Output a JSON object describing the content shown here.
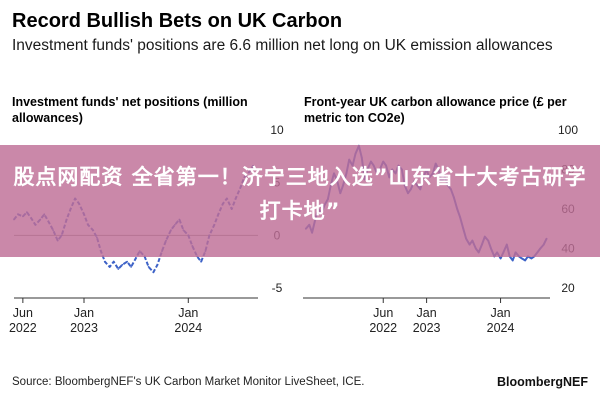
{
  "header": {
    "title": "Record Bullish Bets on UK Carbon",
    "subtitle": "Investment funds' positions are 6.6 million net long on UK emission allowances"
  },
  "overlay_text": "股点网配资 全省第一！济宁三地入选”山东省十大考古研学打卡地”",
  "footer": {
    "source": "Source: BloombergNEF's UK Carbon Market Monitor LiveSheet, ICE.",
    "brand": "BloombergNEF"
  },
  "colors": {
    "series": "#3d62c7",
    "zero_line": "#8a8a8a",
    "overlay": "#be6e96"
  },
  "chart_data": [
    {
      "type": "line",
      "title": "Investment funds' net positions (million allowances)",
      "style": "dashed",
      "x_ticks": [
        {
          "date": "2022-06-01",
          "label": [
            "Jun",
            "2022"
          ]
        },
        {
          "date": "2023-01-01",
          "label": [
            "Jan",
            "2023"
          ]
        },
        {
          "date": "2024-01-01",
          "label": [
            "Jan",
            "2024"
          ]
        }
      ],
      "y_ticks": [
        10,
        5,
        0,
        -5
      ],
      "ylim": [
        -5,
        10
      ],
      "xlim": [
        "2022-05-01",
        "2024-09-01"
      ],
      "zero_line": true,
      "series": [
        {
          "x": [
            "2022-05-01",
            "2022-05-15",
            "2022-06-01",
            "2022-06-15",
            "2022-07-01",
            "2022-07-15",
            "2022-08-01",
            "2022-08-15",
            "2022-09-01",
            "2022-09-15",
            "2022-10-01",
            "2022-10-15",
            "2022-11-01",
            "2022-11-15",
            "2022-12-01",
            "2022-12-15",
            "2023-01-01",
            "2023-01-15",
            "2023-02-01",
            "2023-02-15",
            "2023-03-01",
            "2023-03-15",
            "2023-04-01",
            "2023-04-15",
            "2023-05-01",
            "2023-05-15",
            "2023-06-01",
            "2023-06-15",
            "2023-07-01",
            "2023-07-15",
            "2023-08-01",
            "2023-08-15",
            "2023-09-01",
            "2023-09-15",
            "2023-10-01",
            "2023-10-15",
            "2023-11-01",
            "2023-11-15",
            "2023-12-01",
            "2023-12-15",
            "2024-01-01",
            "2024-01-15",
            "2024-02-01",
            "2024-02-15",
            "2024-03-01",
            "2024-03-15",
            "2024-04-01",
            "2024-04-15",
            "2024-05-01",
            "2024-05-15",
            "2024-06-01",
            "2024-06-15",
            "2024-07-01",
            "2024-07-15",
            "2024-08-01",
            "2024-08-15"
          ],
          "values": [
            1.5,
            2.0,
            1.8,
            2.2,
            1.6,
            1.0,
            1.5,
            2.0,
            1.2,
            0.5,
            -0.5,
            0.0,
            1.5,
            2.5,
            3.5,
            3.0,
            2.0,
            1.0,
            0.5,
            -0.2,
            -1.5,
            -2.5,
            -3.0,
            -2.5,
            -3.2,
            -2.8,
            -2.5,
            -3.0,
            -2.2,
            -1.5,
            -2.0,
            -3.0,
            -3.5,
            -2.8,
            -1.5,
            -0.5,
            0.5,
            1.0,
            1.5,
            0.5,
            0.0,
            -1.0,
            -2.0,
            -2.5,
            -1.5,
            0.0,
            1.0,
            2.0,
            3.0,
            3.5,
            2.5,
            3.5,
            4.5,
            5.5,
            6.0,
            6.6
          ]
        }
      ]
    },
    {
      "type": "line",
      "title": "Front-year UK carbon allowance price (£ per metric ton CO2e)",
      "style": "solid",
      "x_ticks": [
        {
          "date": "2022-06-01",
          "label": [
            "Jun",
            "2022"
          ]
        },
        {
          "date": "2023-01-01",
          "label": [
            "Jan",
            "2023"
          ]
        },
        {
          "date": "2024-01-01",
          "label": [
            "Jan",
            "2024"
          ]
        }
      ],
      "y_ticks": [
        100,
        80,
        60,
        40,
        20
      ],
      "ylim": [
        20,
        100
      ],
      "xlim": [
        "2021-05-01",
        "2024-09-01"
      ],
      "zero_line": false,
      "series": [
        {
          "x": [
            "2021-05-15",
            "2021-06-01",
            "2021-06-15",
            "2021-07-01",
            "2021-07-15",
            "2021-08-01",
            "2021-08-15",
            "2021-09-01",
            "2021-09-15",
            "2021-10-01",
            "2021-10-15",
            "2021-11-01",
            "2021-11-15",
            "2021-12-01",
            "2021-12-15",
            "2022-01-01",
            "2022-01-15",
            "2022-02-01",
            "2022-02-15",
            "2022-03-01",
            "2022-03-15",
            "2022-04-01",
            "2022-04-15",
            "2022-05-01",
            "2022-05-15",
            "2022-06-01",
            "2022-06-15",
            "2022-07-01",
            "2022-07-15",
            "2022-08-01",
            "2022-08-15",
            "2022-09-01",
            "2022-09-15",
            "2022-10-01",
            "2022-10-15",
            "2022-11-01",
            "2022-11-15",
            "2022-12-01",
            "2022-12-15",
            "2023-01-01",
            "2023-01-15",
            "2023-02-01",
            "2023-02-15",
            "2023-03-01",
            "2023-03-15",
            "2023-04-01",
            "2023-04-15",
            "2023-05-01",
            "2023-05-15",
            "2023-06-01",
            "2023-06-15",
            "2023-07-01",
            "2023-07-15",
            "2023-08-01",
            "2023-08-15",
            "2023-09-01",
            "2023-09-15",
            "2023-10-01",
            "2023-10-15",
            "2023-11-01",
            "2023-11-15",
            "2023-12-01",
            "2023-12-15",
            "2024-01-01",
            "2024-01-15",
            "2024-02-01",
            "2024-02-15",
            "2024-03-01",
            "2024-03-15",
            "2024-04-01",
            "2024-04-15",
            "2024-05-01",
            "2024-05-15",
            "2024-06-01",
            "2024-06-15",
            "2024-07-01",
            "2024-07-15",
            "2024-08-01",
            "2024-08-15"
          ],
          "values": [
            50,
            52,
            48,
            55,
            60,
            58,
            62,
            65,
            72,
            78,
            75,
            68,
            72,
            78,
            85,
            82,
            88,
            92,
            86,
            75,
            80,
            84,
            82,
            78,
            80,
            84,
            82,
            76,
            80,
            78,
            82,
            80,
            72,
            68,
            70,
            74,
            72,
            70,
            76,
            80,
            76,
            78,
            83,
            80,
            74,
            76,
            72,
            70,
            66,
            60,
            56,
            50,
            45,
            42,
            44,
            40,
            38,
            42,
            46,
            44,
            40,
            36,
            38,
            35,
            38,
            42,
            36,
            34,
            38,
            36,
            35,
            34,
            36,
            35,
            36,
            38,
            40,
            42,
            45
          ]
        }
      ]
    }
  ]
}
